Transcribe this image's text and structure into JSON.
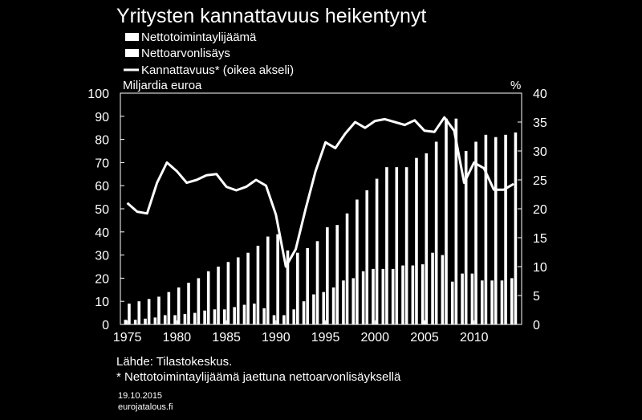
{
  "chart_data": {
    "type": "bar",
    "title": "Yritysten kannattavuus heikentynyt",
    "left_axis_label": "Miljardia euroa",
    "right_axis_label": "%",
    "ylim_left": [
      0,
      100
    ],
    "ylim_right": [
      0,
      40
    ],
    "left_ticks": [
      "0",
      "10",
      "20",
      "30",
      "40",
      "50",
      "60",
      "70",
      "80",
      "90",
      "100"
    ],
    "right_ticks": [
      "0",
      "5",
      "10",
      "15",
      "20",
      "25",
      "30",
      "35",
      "40"
    ],
    "x_ticks": [
      1975,
      1980,
      1985,
      1990,
      1995,
      2000,
      2005,
      2010
    ],
    "legend_position": "top-left",
    "x": [
      1975,
      1976,
      1977,
      1978,
      1979,
      1980,
      1981,
      1982,
      1983,
      1984,
      1985,
      1986,
      1987,
      1988,
      1989,
      1990,
      1991,
      1992,
      1993,
      1994,
      1995,
      1996,
      1997,
      1998,
      1999,
      2000,
      2001,
      2002,
      2003,
      2004,
      2005,
      2006,
      2007,
      2008,
      2009,
      2010,
      2011,
      2012,
      2013,
      2014
    ],
    "series": [
      {
        "name": "Nettotoimintaylijäämä",
        "kind": "bar",
        "axis": "left",
        "values": [
          2,
          2,
          2.5,
          3,
          4,
          4,
          4.5,
          5,
          6,
          6.5,
          6.5,
          7.5,
          8.5,
          9,
          7,
          4,
          4,
          6.5,
          10,
          13,
          14,
          16,
          19,
          20,
          23,
          24,
          24,
          24,
          25.5,
          25.5,
          26,
          31,
          30,
          18.5,
          22,
          22,
          19,
          19,
          19,
          20
        ]
      },
      {
        "name": "Nettoarvonlisäys",
        "kind": "bar",
        "axis": "left",
        "values": [
          9,
          10,
          11,
          12,
          14,
          16,
          18,
          20,
          23,
          25,
          27,
          29,
          31,
          34,
          38,
          39,
          32,
          31,
          33,
          36,
          42,
          43,
          48,
          54,
          58,
          63,
          68,
          68,
          68,
          72,
          74,
          79,
          89,
          89,
          75,
          79,
          82,
          81,
          82,
          83
        ]
      },
      {
        "name": "Kannattavuus*  (oikea akseli)",
        "kind": "line",
        "axis": "right",
        "values": [
          21,
          19.5,
          19.2,
          24.5,
          28,
          26.5,
          24.5,
          25,
          25.8,
          26,
          23.8,
          23.2,
          23.8,
          25,
          24,
          19,
          10,
          13,
          20,
          26.5,
          31.5,
          30.5,
          33,
          35,
          34,
          35.2,
          35.5,
          35,
          34.5,
          35.3,
          33.5,
          33.3,
          35.8,
          33.5,
          24.5,
          28,
          27,
          23.3,
          23.3,
          24.3
        ]
      }
    ],
    "source": "Lähde: Tilastokeskus.",
    "footnote": "* Nettotoimintaylijäämä jaettuna nettoarvonlisäyksellä",
    "date": "19.10.2015",
    "publisher": "eurojatalous.fi"
  }
}
